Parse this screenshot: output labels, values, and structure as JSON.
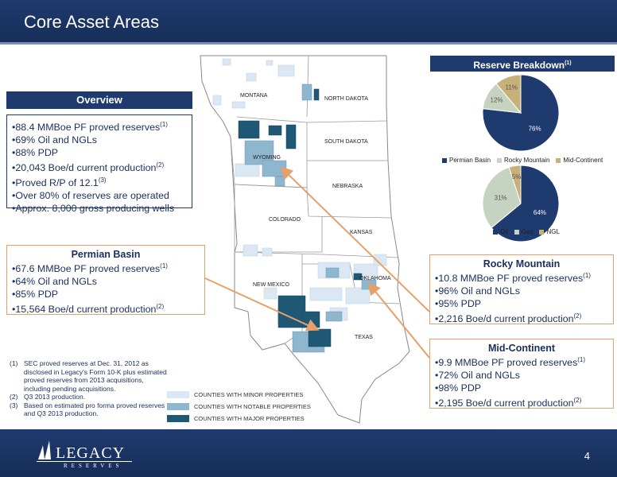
{
  "slide": {
    "title": "Core Asset Areas",
    "page_number": "4"
  },
  "overview": {
    "heading": "Overview",
    "bullets": [
      {
        "text": "88.4 MMBoe PF proved reserves",
        "sup": "(1)"
      },
      {
        "text": "69% Oil and NGLs",
        "sup": ""
      },
      {
        "text": "88% PDP",
        "sup": ""
      },
      {
        "text": "20,043 Boe/d current production",
        "sup": "(2)"
      },
      {
        "text": "Proved R/P of 12.1",
        "sup": "(3)"
      },
      {
        "text": "Over 80% of reserves are operated",
        "sup": ""
      },
      {
        "text": "Approx. 8,000 gross producing wells",
        "sup": ""
      }
    ]
  },
  "permian": {
    "heading": "Permian Basin",
    "bullets": [
      {
        "text": "67.6 MMBoe PF proved reserves",
        "sup": "(1)"
      },
      {
        "text": "64% Oil and NGLs",
        "sup": ""
      },
      {
        "text": "85% PDP",
        "sup": ""
      },
      {
        "text": "15,564 Boe/d current production",
        "sup": "(2)"
      }
    ]
  },
  "rocky": {
    "heading": "Rocky Mountain",
    "bullets": [
      {
        "text": "10.8 MMBoe PF proved reserves",
        "sup": "(1)"
      },
      {
        "text": "96% Oil and NGLs",
        "sup": ""
      },
      {
        "text": "95% PDP",
        "sup": ""
      },
      {
        "text": "2,216 Boe/d current production",
        "sup": "(2)"
      }
    ]
  },
  "midcon": {
    "heading": "Mid-Continent",
    "bullets": [
      {
        "text": "9.9 MMBoe PF proved reserves",
        "sup": "(1)"
      },
      {
        "text": "72% Oil and NGLs",
        "sup": ""
      },
      {
        "text": "98% PDP",
        "sup": ""
      },
      {
        "text": "2,195 Boe/d current production",
        "sup": "(2)"
      }
    ]
  },
  "footnotes": [
    {
      "num": "(1)",
      "text": "SEC proved reserves at Dec. 31, 2012 as disclosed in Legacy's Form 10-K plus estimated proved reserves from 2013 acquisitions, including pending acquisitions."
    },
    {
      "num": "(2)",
      "text": "Q3 2013 production."
    },
    {
      "num": "(3)",
      "text": "Based on estimated pro forma proved reserves and Q3 2013 production."
    }
  ],
  "reserve_breakdown": {
    "heading": "Reserve Breakdown",
    "sup": "(1)"
  },
  "chart_data": [
    {
      "type": "pie",
      "categories": [
        "Permian Basin",
        "Rocky Mountain",
        "Mid-Continent"
      ],
      "values": [
        76,
        12,
        11
      ],
      "labels": [
        "76%",
        "12%",
        "11%"
      ],
      "colors": [
        "#1f3a6e",
        "#c5d3c0",
        "#c8b07a"
      ],
      "legend": "bottom"
    },
    {
      "type": "pie",
      "categories": [
        "Oil",
        "Gas",
        "NGL"
      ],
      "values": [
        64,
        31,
        5
      ],
      "labels": [
        "64%",
        "31%",
        "5%"
      ],
      "colors": [
        "#1f3a6e",
        "#c5d3c0",
        "#c8b07a"
      ],
      "legend": "bottom"
    }
  ],
  "map": {
    "states": [
      "MONTANA",
      "NORTH DAKOTA",
      "SOUTH DAKOTA",
      "WYOMING",
      "NEBRASKA",
      "COLORADO",
      "KANSAS",
      "NEW MEXICO",
      "OKLAHOMA",
      "TEXAS"
    ],
    "legend": [
      {
        "label": "COUNTIES WITH MINOR PROPERTIES",
        "color": "#dbe8f3"
      },
      {
        "label": "COUNTIES WITH NOTABLE PROPERTIES",
        "color": "#8fb6cf"
      },
      {
        "label": "COUNTIES WITH MAJOR PROPERTIES",
        "color": "#1f5874"
      }
    ]
  },
  "logo": {
    "name": "LEGACY",
    "sub": "RESERVES"
  }
}
